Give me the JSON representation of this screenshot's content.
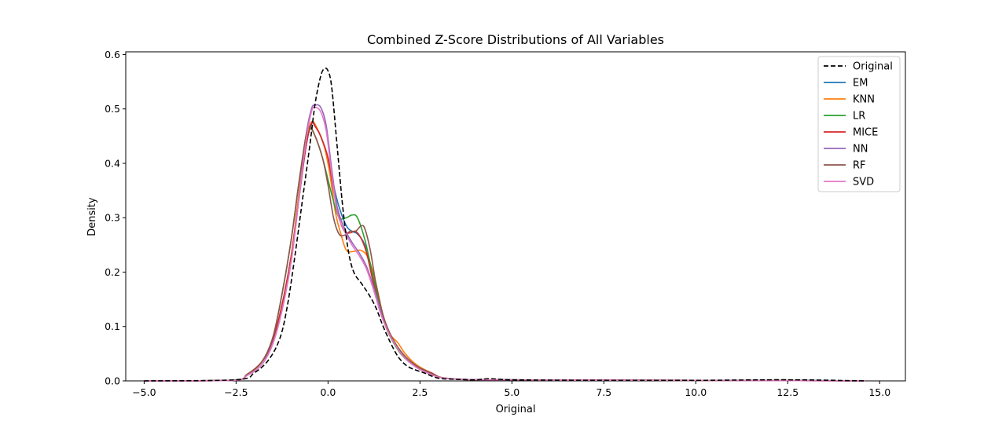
{
  "chart_data": {
    "type": "line",
    "title": "Combined Z-Score Distributions of All Variables",
    "xlabel": "Original",
    "ylabel": "Density",
    "xlim": [
      -5.5,
      15.7
    ],
    "ylim": [
      0,
      0.605
    ],
    "xticks": [
      -5.0,
      -2.5,
      0.0,
      2.5,
      5.0,
      7.5,
      10.0,
      12.5,
      15.0
    ],
    "xtick_labels": [
      "−5.0",
      "−2.5",
      "0.0",
      "2.5",
      "5.0",
      "7.5",
      "10.0",
      "12.5",
      "15.0"
    ],
    "yticks": [
      0.0,
      0.1,
      0.2,
      0.3,
      0.4,
      0.5,
      0.6
    ],
    "ytick_labels": [
      "0.0",
      "0.1",
      "0.2",
      "0.3",
      "0.4",
      "0.5",
      "0.6"
    ],
    "legend_position": "top-right",
    "series": [
      {
        "name": "Original",
        "color": "#000000",
        "dashed": true,
        "points": [
          [
            -5.0,
            0.0
          ],
          [
            -2.5,
            0.002
          ],
          [
            -2.0,
            0.015
          ],
          [
            -1.6,
            0.04
          ],
          [
            -1.3,
            0.08
          ],
          [
            -1.1,
            0.14
          ],
          [
            -0.9,
            0.23
          ],
          [
            -0.7,
            0.33
          ],
          [
            -0.5,
            0.43
          ],
          [
            -0.35,
            0.51
          ],
          [
            -0.2,
            0.56
          ],
          [
            -0.1,
            0.574
          ],
          [
            0.0,
            0.57
          ],
          [
            0.1,
            0.54
          ],
          [
            0.25,
            0.43
          ],
          [
            0.4,
            0.32
          ],
          [
            0.55,
            0.24
          ],
          [
            0.7,
            0.2
          ],
          [
            0.9,
            0.18
          ],
          [
            1.1,
            0.16
          ],
          [
            1.3,
            0.135
          ],
          [
            1.5,
            0.1
          ],
          [
            1.7,
            0.07
          ],
          [
            1.9,
            0.045
          ],
          [
            2.1,
            0.03
          ],
          [
            2.3,
            0.022
          ],
          [
            2.6,
            0.015
          ],
          [
            3.0,
            0.005
          ],
          [
            3.5,
            0.003
          ],
          [
            4.0,
            0.002
          ],
          [
            4.4,
            0.004
          ],
          [
            5.0,
            0.002
          ],
          [
            7.0,
            0.001
          ],
          [
            10.0,
            0.001
          ],
          [
            12.5,
            0.002
          ],
          [
            14.6,
            0.0
          ]
        ]
      },
      {
        "name": "EM",
        "color": "#1f77b4",
        "dashed": false,
        "points": [
          [
            -5.0,
            0.0
          ],
          [
            -2.6,
            0.001
          ],
          [
            -2.2,
            0.012
          ],
          [
            -1.8,
            0.035
          ],
          [
            -1.5,
            0.075
          ],
          [
            -1.25,
            0.14
          ],
          [
            -1.0,
            0.23
          ],
          [
            -0.8,
            0.33
          ],
          [
            -0.6,
            0.43
          ],
          [
            -0.45,
            0.472
          ],
          [
            -0.35,
            0.468
          ],
          [
            -0.2,
            0.45
          ],
          [
            0.0,
            0.41
          ],
          [
            0.15,
            0.36
          ],
          [
            0.3,
            0.32
          ],
          [
            0.5,
            0.285
          ],
          [
            0.65,
            0.275
          ],
          [
            0.8,
            0.27
          ],
          [
            1.0,
            0.25
          ],
          [
            1.2,
            0.2
          ],
          [
            1.4,
            0.14
          ],
          [
            1.6,
            0.095
          ],
          [
            1.8,
            0.07
          ],
          [
            2.0,
            0.05
          ],
          [
            2.3,
            0.03
          ],
          [
            2.8,
            0.015
          ],
          [
            3.2,
            0.005
          ],
          [
            4.5,
            0.002
          ],
          [
            10.0,
            0.001
          ],
          [
            12.5,
            0.001
          ],
          [
            14.6,
            0.0
          ]
        ]
      },
      {
        "name": "KNN",
        "color": "#ff7f0e",
        "dashed": false,
        "points": [
          [
            -5.0,
            0.0
          ],
          [
            -2.6,
            0.001
          ],
          [
            -2.2,
            0.012
          ],
          [
            -1.8,
            0.035
          ],
          [
            -1.5,
            0.075
          ],
          [
            -1.25,
            0.14
          ],
          [
            -1.0,
            0.23
          ],
          [
            -0.8,
            0.34
          ],
          [
            -0.6,
            0.44
          ],
          [
            -0.45,
            0.476
          ],
          [
            -0.3,
            0.465
          ],
          [
            -0.1,
            0.43
          ],
          [
            0.05,
            0.38
          ],
          [
            0.2,
            0.31
          ],
          [
            0.35,
            0.27
          ],
          [
            0.5,
            0.24
          ],
          [
            0.7,
            0.238
          ],
          [
            0.9,
            0.24
          ],
          [
            1.1,
            0.225
          ],
          [
            1.3,
            0.18
          ],
          [
            1.5,
            0.12
          ],
          [
            1.7,
            0.085
          ],
          [
            1.9,
            0.07
          ],
          [
            2.1,
            0.05
          ],
          [
            2.4,
            0.03
          ],
          [
            2.8,
            0.015
          ],
          [
            3.2,
            0.005
          ],
          [
            4.5,
            0.002
          ],
          [
            10.0,
            0.001
          ],
          [
            14.6,
            0.0
          ]
        ]
      },
      {
        "name": "LR",
        "color": "#2ca02c",
        "dashed": false,
        "points": [
          [
            -5.0,
            0.0
          ],
          [
            -2.6,
            0.001
          ],
          [
            -2.2,
            0.012
          ],
          [
            -1.8,
            0.035
          ],
          [
            -1.5,
            0.08
          ],
          [
            -1.25,
            0.16
          ],
          [
            -1.0,
            0.26
          ],
          [
            -0.8,
            0.36
          ],
          [
            -0.6,
            0.45
          ],
          [
            -0.5,
            0.465
          ],
          [
            -0.35,
            0.45
          ],
          [
            -0.15,
            0.41
          ],
          [
            0.0,
            0.37
          ],
          [
            0.15,
            0.33
          ],
          [
            0.3,
            0.3
          ],
          [
            0.5,
            0.3
          ],
          [
            0.65,
            0.305
          ],
          [
            0.8,
            0.3
          ],
          [
            1.0,
            0.26
          ],
          [
            1.2,
            0.2
          ],
          [
            1.4,
            0.14
          ],
          [
            1.6,
            0.095
          ],
          [
            1.8,
            0.068
          ],
          [
            2.0,
            0.048
          ],
          [
            2.3,
            0.03
          ],
          [
            2.8,
            0.015
          ],
          [
            3.2,
            0.005
          ],
          [
            4.5,
            0.002
          ],
          [
            10.0,
            0.001
          ],
          [
            14.6,
            0.0
          ]
        ]
      },
      {
        "name": "MICE",
        "color": "#d62728",
        "dashed": false,
        "points": [
          [
            -5.0,
            0.0
          ],
          [
            -2.6,
            0.001
          ],
          [
            -2.2,
            0.012
          ],
          [
            -1.8,
            0.035
          ],
          [
            -1.5,
            0.075
          ],
          [
            -1.25,
            0.14
          ],
          [
            -1.0,
            0.23
          ],
          [
            -0.8,
            0.33
          ],
          [
            -0.6,
            0.43
          ],
          [
            -0.45,
            0.474
          ],
          [
            -0.35,
            0.468
          ],
          [
            -0.2,
            0.45
          ],
          [
            0.0,
            0.41
          ],
          [
            0.15,
            0.35
          ],
          [
            0.3,
            0.3
          ],
          [
            0.45,
            0.275
          ],
          [
            0.6,
            0.272
          ],
          [
            0.75,
            0.275
          ],
          [
            0.9,
            0.262
          ],
          [
            1.05,
            0.235
          ],
          [
            1.2,
            0.19
          ],
          [
            1.4,
            0.135
          ],
          [
            1.6,
            0.095
          ],
          [
            1.8,
            0.07
          ],
          [
            2.0,
            0.05
          ],
          [
            2.3,
            0.03
          ],
          [
            2.8,
            0.015
          ],
          [
            3.2,
            0.005
          ],
          [
            4.5,
            0.002
          ],
          [
            10.0,
            0.001
          ],
          [
            14.6,
            0.0
          ]
        ]
      },
      {
        "name": "NN",
        "color": "#9467bd",
        "dashed": false,
        "points": [
          [
            -5.0,
            0.0
          ],
          [
            -2.6,
            0.001
          ],
          [
            -2.2,
            0.01
          ],
          [
            -1.8,
            0.03
          ],
          [
            -1.5,
            0.07
          ],
          [
            -1.25,
            0.13
          ],
          [
            -1.0,
            0.22
          ],
          [
            -0.8,
            0.33
          ],
          [
            -0.6,
            0.45
          ],
          [
            -0.45,
            0.5
          ],
          [
            -0.35,
            0.507
          ],
          [
            -0.2,
            0.503
          ],
          [
            -0.05,
            0.47
          ],
          [
            0.1,
            0.39
          ],
          [
            0.25,
            0.32
          ],
          [
            0.45,
            0.28
          ],
          [
            0.65,
            0.255
          ],
          [
            0.85,
            0.235
          ],
          [
            1.05,
            0.21
          ],
          [
            1.25,
            0.17
          ],
          [
            1.45,
            0.125
          ],
          [
            1.65,
            0.09
          ],
          [
            1.85,
            0.065
          ],
          [
            2.05,
            0.045
          ],
          [
            2.4,
            0.025
          ],
          [
            2.8,
            0.012
          ],
          [
            3.2,
            0.005
          ],
          [
            4.5,
            0.002
          ],
          [
            10.0,
            0.001
          ],
          [
            14.6,
            0.0
          ]
        ]
      },
      {
        "name": "RF",
        "color": "#8c564b",
        "dashed": false,
        "points": [
          [
            -5.0,
            0.0
          ],
          [
            -2.6,
            0.001
          ],
          [
            -2.2,
            0.012
          ],
          [
            -1.8,
            0.035
          ],
          [
            -1.5,
            0.08
          ],
          [
            -1.25,
            0.16
          ],
          [
            -1.0,
            0.26
          ],
          [
            -0.8,
            0.36
          ],
          [
            -0.6,
            0.45
          ],
          [
            -0.5,
            0.468
          ],
          [
            -0.35,
            0.45
          ],
          [
            -0.15,
            0.41
          ],
          [
            0.0,
            0.36
          ],
          [
            0.15,
            0.3
          ],
          [
            0.3,
            0.27
          ],
          [
            0.45,
            0.268
          ],
          [
            0.6,
            0.275
          ],
          [
            0.75,
            0.275
          ],
          [
            0.9,
            0.285
          ],
          [
            1.0,
            0.28
          ],
          [
            1.15,
            0.24
          ],
          [
            1.3,
            0.18
          ],
          [
            1.5,
            0.12
          ],
          [
            1.7,
            0.085
          ],
          [
            1.9,
            0.062
          ],
          [
            2.1,
            0.045
          ],
          [
            2.4,
            0.028
          ],
          [
            2.8,
            0.014
          ],
          [
            3.2,
            0.005
          ],
          [
            4.5,
            0.002
          ],
          [
            10.0,
            0.001
          ],
          [
            14.6,
            0.0
          ]
        ]
      },
      {
        "name": "SVD",
        "color": "#e377c2",
        "dashed": false,
        "points": [
          [
            -5.0,
            0.0
          ],
          [
            -2.6,
            0.001
          ],
          [
            -2.2,
            0.01
          ],
          [
            -1.8,
            0.03
          ],
          [
            -1.5,
            0.068
          ],
          [
            -1.25,
            0.13
          ],
          [
            -1.0,
            0.22
          ],
          [
            -0.8,
            0.33
          ],
          [
            -0.6,
            0.44
          ],
          [
            -0.45,
            0.495
          ],
          [
            -0.35,
            0.503
          ],
          [
            -0.2,
            0.495
          ],
          [
            -0.05,
            0.46
          ],
          [
            0.1,
            0.38
          ],
          [
            0.25,
            0.31
          ],
          [
            0.45,
            0.275
          ],
          [
            0.65,
            0.25
          ],
          [
            0.85,
            0.23
          ],
          [
            1.05,
            0.205
          ],
          [
            1.25,
            0.165
          ],
          [
            1.45,
            0.12
          ],
          [
            1.65,
            0.088
          ],
          [
            1.85,
            0.064
          ],
          [
            2.05,
            0.045
          ],
          [
            2.4,
            0.025
          ],
          [
            2.8,
            0.012
          ],
          [
            3.2,
            0.005
          ],
          [
            4.5,
            0.002
          ],
          [
            10.0,
            0.001
          ],
          [
            14.6,
            0.0
          ]
        ]
      }
    ]
  }
}
